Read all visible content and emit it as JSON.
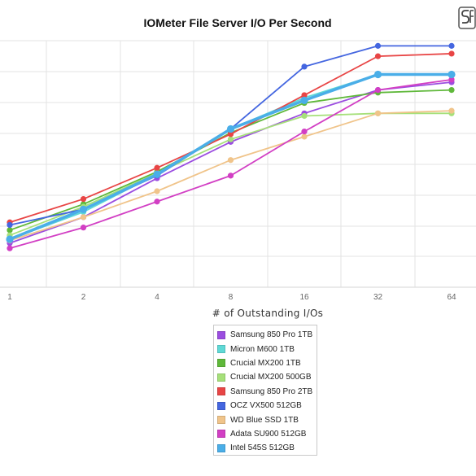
{
  "chart_data": {
    "type": "line",
    "title": "IOMeter File Server I/O Per Second",
    "xlabel": "# of Outstanding I/Os",
    "ylabel": "",
    "categories": [
      "1",
      "2",
      "4",
      "8",
      "16",
      "32",
      "64"
    ],
    "x_scale": "log2",
    "ylim": [
      0,
      95000
    ],
    "grid": true,
    "legend_position": "bottom-center",
    "series": [
      {
        "name": "Samsung 850 Pro 1TB",
        "color": "#9b4de0",
        "values": [
          17000,
          27000,
          42000,
          56000,
          67000,
          76000,
          79000
        ]
      },
      {
        "name": "Micron M600 1TB",
        "color": "#5fd9d6",
        "values": [
          18500,
          29000,
          43500,
          61000,
          73000,
          82000,
          82000
        ]
      },
      {
        "name": "Crucial MX200 1TB",
        "color": "#5fb83a",
        "values": [
          22000,
          32000,
          44500,
          59500,
          71000,
          75000,
          76000
        ]
      },
      {
        "name": "Crucial MX200 500GB",
        "color": "#a6e07a",
        "values": [
          20000,
          31000,
          44000,
          57000,
          66000,
          67000,
          67000
        ]
      },
      {
        "name": "Samsung 850 Pro 2TB",
        "color": "#e84545",
        "values": [
          25000,
          34000,
          46000,
          59000,
          74000,
          89000,
          90000
        ]
      },
      {
        "name": "OCZ VX500 512GB",
        "color": "#4466e0",
        "values": [
          24000,
          30000,
          43000,
          61000,
          85000,
          93000,
          93000
        ]
      },
      {
        "name": "WD Blue SSD 1TB",
        "color": "#f0c48a",
        "values": [
          18000,
          27000,
          37000,
          49000,
          58000,
          67000,
          68000
        ]
      },
      {
        "name": "Adata SU900 512GB",
        "color": "#d23fc4",
        "values": [
          15000,
          23000,
          33000,
          43000,
          60000,
          76000,
          80000
        ]
      },
      {
        "name": "Intel 545S 512GB",
        "color": "#4aaee8",
        "values": [
          18500,
          30000,
          43500,
          61000,
          72000,
          82000,
          82000
        ]
      }
    ]
  },
  "logo": {
    "text": "SR"
  }
}
